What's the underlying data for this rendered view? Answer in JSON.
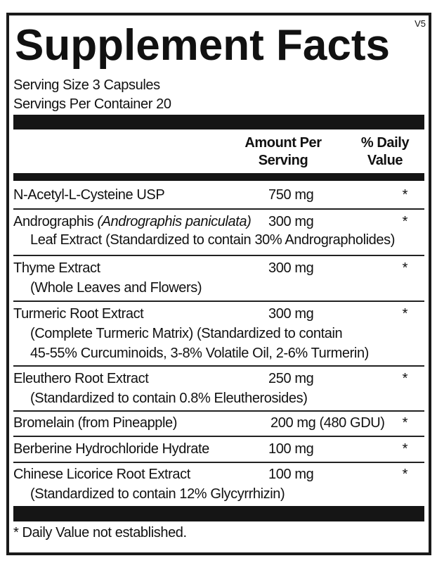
{
  "version": "V5",
  "title": "Supplement Facts",
  "serving_size": "Serving Size 3 Capsules",
  "servings_per_container": "Servings Per Container 20",
  "header": {
    "amount_line1": "Amount Per",
    "amount_line2": "Serving",
    "dv_line1": "% Daily",
    "dv_line2": "Value"
  },
  "rows": [
    {
      "name": "N-Acetyl-L-Cysteine USP",
      "amount": "750 mg",
      "dv": "*"
    },
    {
      "name": "Andrographis ",
      "name_italic": "(Andrographis paniculata)",
      "amount": "300 mg",
      "dv": "*",
      "sub": [
        "Leaf Extract (Standardized to contain 30% Andrographolides)"
      ]
    },
    {
      "name": "Thyme Extract",
      "amount": "300 mg",
      "dv": "*",
      "sub": [
        "(Whole Leaves and Flowers)"
      ]
    },
    {
      "name": "Turmeric Root Extract",
      "amount": "300 mg",
      "dv": "*",
      "sub": [
        "(Complete Turmeric Matrix) (Standardized to contain",
        "45-55% Curcuminoids, 3-8% Volatile Oil, 2-6% Turmerin)"
      ]
    },
    {
      "name": "Eleuthero Root Extract",
      "amount": "250 mg",
      "dv": "*",
      "sub": [
        "(Standardized to contain 0.8% Eleutherosides)"
      ]
    },
    {
      "name": "Bromelain (from Pineapple)",
      "amount": "200 mg (480 GDU)",
      "dv": "*"
    },
    {
      "name": "Berberine Hydrochloride Hydrate",
      "amount": "100 mg",
      "dv": "*"
    },
    {
      "name": "Chinese Licorice Root Extract",
      "amount": "100 mg",
      "dv": "*",
      "sub": [
        "(Standardized to contain 12% Glycyrrhizin)"
      ]
    }
  ],
  "footnote": "* Daily Value not established."
}
